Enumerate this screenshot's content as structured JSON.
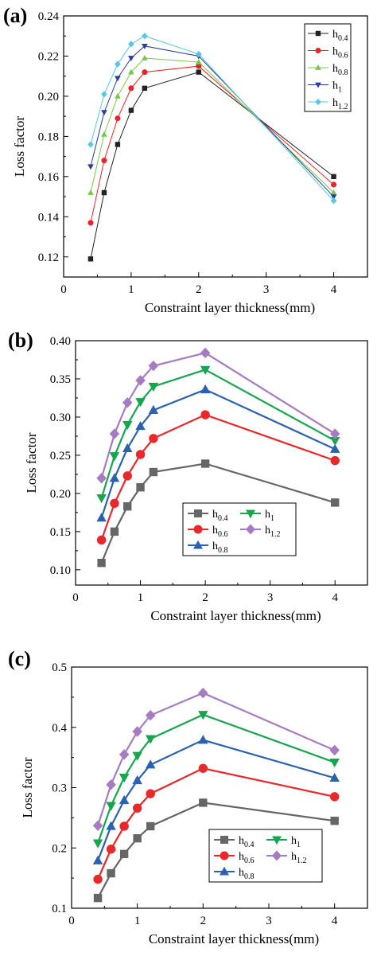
{
  "chart_data": [
    {
      "panel_label": "(a)",
      "type": "line",
      "xlabel": "Constraint layer thickness(mm)",
      "ylabel": "Loss factor",
      "xlim": [
        0,
        4.5
      ],
      "ylim": [
        0.11,
        0.24
      ],
      "xticks": [
        0,
        1,
        2,
        3,
        4
      ],
      "xtick_labels": [
        "0",
        "1",
        "2",
        "3",
        "4"
      ],
      "yticks": [
        0.12,
        0.14,
        0.16,
        0.18,
        0.2,
        0.22,
        0.24
      ],
      "ytick_labels": [
        "0.12",
        "0.14",
        "0.16",
        "0.18",
        "0.20",
        "0.22",
        "0.24"
      ],
      "legend_position": "top-right",
      "legend_layout": "column",
      "x": [
        0.4,
        0.6,
        0.8,
        1.0,
        1.2,
        2.0,
        4.0
      ],
      "series": [
        {
          "name": "h",
          "sub": "0.4",
          "color": "#222222",
          "marker": "square",
          "values": [
            0.119,
            0.152,
            0.176,
            0.193,
            0.204,
            0.212,
            0.16
          ]
        },
        {
          "name": "h",
          "sub": "0.6",
          "color": "#e8242a",
          "marker": "circle",
          "values": [
            0.137,
            0.168,
            0.189,
            0.204,
            0.212,
            0.215,
            0.156
          ]
        },
        {
          "name": "h",
          "sub": "0.8",
          "color": "#79c74a",
          "marker": "triangle-up",
          "values": [
            0.152,
            0.181,
            0.2,
            0.212,
            0.219,
            0.217,
            0.152
          ]
        },
        {
          "name": "h",
          "sub": "1",
          "color": "#2c3d93",
          "marker": "triangle-down",
          "values": [
            0.165,
            0.192,
            0.209,
            0.219,
            0.225,
            0.22,
            0.15
          ]
        },
        {
          "name": "h",
          "sub": "1.2",
          "color": "#58c7e3",
          "marker": "diamond",
          "values": [
            0.176,
            0.201,
            0.216,
            0.226,
            0.23,
            0.221,
            0.148
          ]
        }
      ]
    },
    {
      "panel_label": "(b)",
      "type": "line",
      "xlabel": "Constraint layer thickness(mm)",
      "ylabel": "Loss factor",
      "xlim": [
        0,
        4.5
      ],
      "ylim": [
        0.08,
        0.4
      ],
      "xticks": [
        0,
        1,
        2,
        3,
        4
      ],
      "xtick_labels": [
        "0",
        "1",
        "2",
        "3",
        "4"
      ],
      "yticks": [
        0.1,
        0.15,
        0.2,
        0.25,
        0.3,
        0.35,
        0.4
      ],
      "ytick_labels": [
        "0.10",
        "0.15",
        "0.20",
        "0.25",
        "0.30",
        "0.35",
        "0.40"
      ],
      "legend_position": "bottom-center",
      "legend_layout": "grid",
      "x": [
        0.4,
        0.6,
        0.8,
        1.0,
        1.2,
        2.0,
        4.0
      ],
      "series": [
        {
          "name": "h",
          "sub": "0.4",
          "color": "#666666",
          "marker": "square",
          "values": [
            0.109,
            0.15,
            0.183,
            0.208,
            0.228,
            0.239,
            0.188
          ]
        },
        {
          "name": "h",
          "sub": "0.6",
          "color": "#e8282a",
          "marker": "circle",
          "values": [
            0.139,
            0.187,
            0.223,
            0.251,
            0.272,
            0.303,
            0.243
          ]
        },
        {
          "name": "h",
          "sub": "0.8",
          "color": "#2a62b0",
          "marker": "triangle-up",
          "values": [
            0.168,
            0.22,
            0.259,
            0.288,
            0.309,
            0.336,
            0.258
          ]
        },
        {
          "name": "h",
          "sub": "1",
          "color": "#18a54f",
          "marker": "triangle-down",
          "values": [
            0.194,
            0.249,
            0.29,
            0.32,
            0.34,
            0.362,
            0.269
          ]
        },
        {
          "name": "h",
          "sub": "1.2",
          "color": "#a77bc0",
          "marker": "diamond",
          "values": [
            0.22,
            0.278,
            0.319,
            0.348,
            0.367,
            0.384,
            0.278
          ]
        }
      ]
    },
    {
      "panel_label": "(c)",
      "type": "line",
      "xlabel": "Constraint layer thickness(mm)",
      "ylabel": "Loss factor",
      "xlim": [
        0,
        4.5
      ],
      "ylim": [
        0.1,
        0.5
      ],
      "xticks": [
        0,
        1,
        2,
        3,
        4
      ],
      "xtick_labels": [
        "0",
        "1",
        "2",
        "3",
        "4"
      ],
      "yticks": [
        0.1,
        0.2,
        0.3,
        0.4,
        0.5
      ],
      "ytick_labels": [
        "0.1",
        "0.2",
        "0.3",
        "0.4",
        "0.5"
      ],
      "legend_position": "bottom-center",
      "legend_layout": "grid",
      "x": [
        0.4,
        0.6,
        0.8,
        1.0,
        1.2,
        2.0,
        4.0
      ],
      "series": [
        {
          "name": "h",
          "sub": "0.4",
          "color": "#666666",
          "marker": "square",
          "values": [
            0.117,
            0.158,
            0.19,
            0.216,
            0.236,
            0.275,
            0.245
          ]
        },
        {
          "name": "h",
          "sub": "0.6",
          "color": "#e8282a",
          "marker": "circle",
          "values": [
            0.148,
            0.198,
            0.236,
            0.266,
            0.29,
            0.332,
            0.285
          ]
        },
        {
          "name": "h",
          "sub": "0.8",
          "color": "#2a62b0",
          "marker": "triangle-up",
          "values": [
            0.179,
            0.236,
            0.279,
            0.312,
            0.338,
            0.379,
            0.316
          ]
        },
        {
          "name": "h",
          "sub": "1",
          "color": "#18a54f",
          "marker": "triangle-down",
          "values": [
            0.208,
            0.27,
            0.317,
            0.353,
            0.381,
            0.421,
            0.342
          ]
        },
        {
          "name": "h",
          "sub": "1.2",
          "color": "#a77bc0",
          "marker": "diamond",
          "values": [
            0.237,
            0.305,
            0.355,
            0.393,
            0.42,
            0.457,
            0.362
          ]
        }
      ]
    }
  ]
}
